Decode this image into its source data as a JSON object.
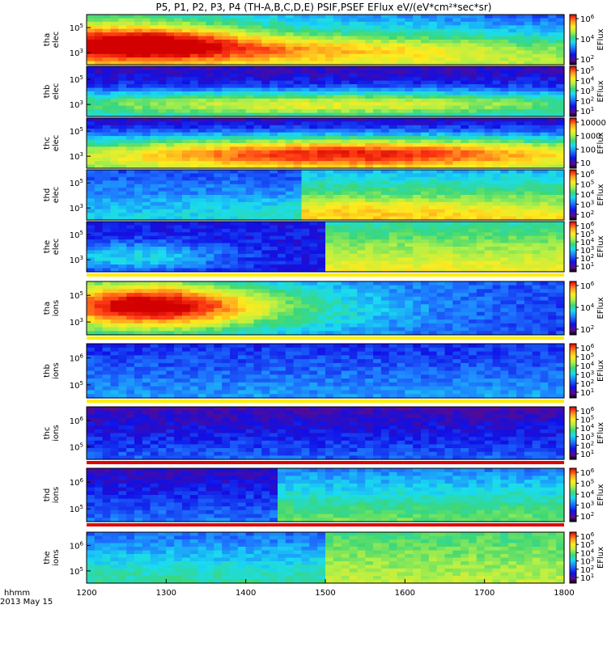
{
  "chart_data": {
    "type": "heatmap",
    "title": "P5, P1, P2, P3, P4 (TH-A,B,C,D,E) PSIF,PSEF EFlux eV/(eV*cm²*sec*sr)",
    "time_axis": {
      "label_line1": "hhmm",
      "label_line2": "2013 May 15",
      "range": [
        1200,
        1800
      ],
      "ticks": [
        "1200",
        "1300",
        "1400",
        "1500",
        "1600",
        "1700",
        "1800"
      ]
    },
    "colorbar_label": "EFlux",
    "panels": [
      {
        "probe": "tha",
        "species": "elec",
        "ytick_exps": [
          5,
          3
        ],
        "cbar_ticks": [
          {
            "m": "10",
            "e": "6"
          },
          {
            "m": "10",
            "e": "4"
          },
          {
            "m": "10",
            "e": "2"
          }
        ],
        "indicator": null
      },
      {
        "probe": "thb",
        "species": "elec",
        "ytick_exps": [
          5,
          3
        ],
        "cbar_ticks": [
          {
            "m": "10",
            "e": "5"
          },
          {
            "m": "10",
            "e": "4"
          },
          {
            "m": "10",
            "e": "3"
          },
          {
            "m": "10",
            "e": "2"
          },
          {
            "m": "10",
            "e": "1"
          }
        ],
        "indicator": null
      },
      {
        "probe": "thc",
        "species": "elec",
        "ytick_exps": [
          5,
          3
        ],
        "cbar_ticks": [
          {
            "m": "10000",
            "e": ""
          },
          {
            "m": "1000",
            "e": ""
          },
          {
            "m": "100",
            "e": ""
          },
          {
            "m": "10",
            "e": ""
          }
        ],
        "indicator": null
      },
      {
        "probe": "thd",
        "species": "elec",
        "ytick_exps": [
          5,
          3
        ],
        "cbar_ticks": [
          {
            "m": "10",
            "e": "6"
          },
          {
            "m": "10",
            "e": "5"
          },
          {
            "m": "10",
            "e": "4"
          },
          {
            "m": "10",
            "e": "3"
          },
          {
            "m": "10",
            "e": "2"
          }
        ],
        "indicator": null
      },
      {
        "probe": "the",
        "species": "elec",
        "ytick_exps": [
          5,
          3
        ],
        "cbar_ticks": [
          {
            "m": "10",
            "e": "6"
          },
          {
            "m": "10",
            "e": "5"
          },
          {
            "m": "10",
            "e": "4"
          },
          {
            "m": "10",
            "e": "3"
          },
          {
            "m": "10",
            "e": "2"
          },
          {
            "m": "10",
            "e": "1"
          }
        ],
        "indicator": "yellow"
      },
      {
        "probe": "tha",
        "species": "ions",
        "ytick_exps": [
          5,
          3
        ],
        "cbar_ticks": [
          {
            "m": "10",
            "e": "6"
          },
          {
            "m": "10",
            "e": "4"
          },
          {
            "m": "10",
            "e": "2"
          }
        ],
        "indicator": "yellow"
      },
      {
        "probe": "thb",
        "species": "ions",
        "ytick_exps": [
          6,
          5
        ],
        "cbar_ticks": [
          {
            "m": "10",
            "e": "6"
          },
          {
            "m": "10",
            "e": "5"
          },
          {
            "m": "10",
            "e": "4"
          },
          {
            "m": "10",
            "e": "3"
          },
          {
            "m": "10",
            "e": "2"
          },
          {
            "m": "10",
            "e": "1"
          }
        ],
        "indicator": "yellow"
      },
      {
        "probe": "thc",
        "species": "ions",
        "ytick_exps": [
          6,
          5
        ],
        "cbar_ticks": [
          {
            "m": "10",
            "e": "6"
          },
          {
            "m": "10",
            "e": "5"
          },
          {
            "m": "10",
            "e": "4"
          },
          {
            "m": "10",
            "e": "3"
          },
          {
            "m": "10",
            "e": "2"
          },
          {
            "m": "10",
            "e": "1"
          }
        ],
        "indicator": "red"
      },
      {
        "probe": "thd",
        "species": "ions",
        "ytick_exps": [
          6,
          5
        ],
        "cbar_ticks": [
          {
            "m": "10",
            "e": "6"
          },
          {
            "m": "10",
            "e": "5"
          },
          {
            "m": "10",
            "e": "4"
          },
          {
            "m": "10",
            "e": "3"
          },
          {
            "m": "10",
            "e": "2"
          }
        ],
        "indicator": "red"
      },
      {
        "probe": "the",
        "species": "ions",
        "ytick_exps": [
          6,
          5
        ],
        "cbar_ticks": [
          {
            "m": "10",
            "e": "6"
          },
          {
            "m": "10",
            "e": "5"
          },
          {
            "m": "10",
            "e": "4"
          },
          {
            "m": "10",
            "e": "3"
          },
          {
            "m": "10",
            "e": "2"
          },
          {
            "m": "10",
            "e": "1"
          }
        ],
        "indicator": null
      }
    ]
  }
}
